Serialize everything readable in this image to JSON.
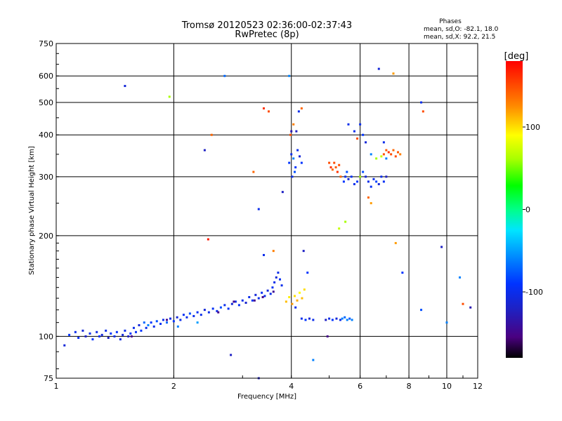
{
  "chart_data": {
    "type": "scatter",
    "title": "Tromsø 20120523 02:36:00-02:37:43",
    "subtitle": "RwPretec (8p)",
    "xlabel": "Frequency [MHz]",
    "ylabel": "Stationary phase Virtual Height [km]",
    "x_scale": "log",
    "y_scale": "log",
    "xlim": [
      1,
      12
    ],
    "ylim": [
      75,
      750
    ],
    "grid": true,
    "x_ticks": [
      1,
      2,
      4,
      6,
      8,
      10,
      12
    ],
    "x_tick_labels": [
      "1",
      "2",
      "4",
      "6",
      "8",
      "10",
      "12"
    ],
    "x_gridlines": [
      2,
      4,
      6,
      8,
      10
    ],
    "y_ticks": [
      75,
      100,
      200,
      300,
      400,
      500,
      600,
      750
    ],
    "y_tick_labels": [
      "75",
      "100",
      "200",
      "300",
      "400",
      "500",
      "600",
      "750"
    ],
    "y_gridlines": [
      100,
      200,
      300,
      400,
      500,
      600
    ],
    "stats": {
      "heading": "Phases",
      "line_o": "mean, sd,O: -82.1, 18.0",
      "line_x": "mean, sd,X:  92.2, 21.5"
    },
    "colorbar": {
      "label": "[deg]",
      "min": -180,
      "max": 180,
      "ticks": [
        100,
        0,
        -100
      ],
      "tick_labels": [
        "100",
        "0",
        "-100"
      ]
    },
    "points": [
      [
        1.05,
        94,
        -110
      ],
      [
        1.08,
        101,
        -90
      ],
      [
        1.12,
        103,
        -100
      ],
      [
        1.14,
        99,
        -95
      ],
      [
        1.17,
        104,
        -110
      ],
      [
        1.19,
        100,
        -120
      ],
      [
        1.22,
        102,
        -100
      ],
      [
        1.24,
        98,
        -90
      ],
      [
        1.27,
        103,
        -105
      ],
      [
        1.29,
        100,
        -95
      ],
      [
        1.31,
        101,
        -110
      ],
      [
        1.34,
        104,
        -100
      ],
      [
        1.36,
        99,
        -120
      ],
      [
        1.38,
        102,
        -90
      ],
      [
        1.41,
        100,
        -100
      ],
      [
        1.43,
        103,
        -95
      ],
      [
        1.46,
        98,
        -105
      ],
      [
        1.48,
        101,
        -110
      ],
      [
        1.5,
        104,
        -100
      ],
      [
        1.53,
        100,
        -120
      ],
      [
        1.55,
        102,
        -90
      ],
      [
        1.58,
        106,
        -100
      ],
      [
        1.6,
        103,
        -95
      ],
      [
        1.63,
        108,
        -110
      ],
      [
        1.65,
        104,
        -90
      ],
      [
        1.68,
        110,
        -70
      ],
      [
        1.7,
        106,
        -100
      ],
      [
        1.72,
        108,
        -60
      ],
      [
        1.75,
        110,
        -90
      ],
      [
        1.78,
        107,
        -100
      ],
      [
        1.81,
        111,
        -80
      ],
      [
        1.85,
        109,
        -95
      ],
      [
        1.88,
        112,
        -100
      ],
      [
        1.92,
        110,
        -70
      ],
      [
        1.96,
        113,
        -100
      ],
      [
        2.0,
        111,
        -90
      ],
      [
        2.04,
        114,
        -110
      ],
      [
        2.08,
        112,
        -100
      ],
      [
        2.12,
        116,
        -95
      ],
      [
        2.16,
        114,
        -100
      ],
      [
        2.2,
        117,
        -80
      ],
      [
        2.25,
        115,
        -100
      ],
      [
        2.3,
        118,
        -95
      ],
      [
        2.35,
        116,
        -100
      ],
      [
        2.4,
        120,
        -110
      ],
      [
        2.46,
        118,
        -100
      ],
      [
        2.52,
        121,
        -95
      ],
      [
        2.58,
        119,
        -100
      ],
      [
        2.64,
        122,
        -80
      ],
      [
        2.7,
        124,
        -100
      ],
      [
        2.76,
        121,
        -95
      ],
      [
        2.82,
        125,
        -110
      ],
      [
        2.88,
        127,
        -100
      ],
      [
        2.94,
        124,
        -95
      ],
      [
        3.0,
        128,
        -100
      ],
      [
        3.06,
        126,
        -115
      ],
      [
        3.12,
        131,
        -100
      ],
      [
        3.18,
        128,
        -95
      ],
      [
        3.24,
        133,
        -110
      ],
      [
        3.3,
        130,
        -100
      ],
      [
        3.36,
        135,
        -95
      ],
      [
        3.42,
        132,
        -100
      ],
      [
        3.48,
        137,
        -110
      ],
      [
        3.54,
        134,
        -100
      ],
      [
        3.58,
        140,
        -95
      ],
      [
        3.62,
        145,
        -100
      ],
      [
        3.66,
        150,
        -110
      ],
      [
        3.7,
        155,
        -100
      ],
      [
        3.74,
        148,
        -95
      ],
      [
        3.78,
        142,
        -100
      ],
      [
        2.85,
        127,
        -150
      ],
      [
        3.22,
        128,
        -150
      ],
      [
        3.38,
        131,
        -150
      ],
      [
        3.6,
        136,
        -145
      ],
      [
        1.56,
        100,
        -150
      ],
      [
        1.92,
        112,
        -150
      ],
      [
        2.6,
        118,
        -150
      ],
      [
        3.88,
        127,
        110
      ],
      [
        3.95,
        131,
        95
      ],
      [
        4.02,
        125,
        120
      ],
      [
        4.08,
        132,
        100
      ],
      [
        4.14,
        128,
        115
      ],
      [
        4.2,
        135,
        90
      ],
      [
        4.26,
        130,
        110
      ],
      [
        4.32,
        138,
        100
      ],
      [
        4.1,
        122,
        -100
      ],
      [
        4.25,
        113,
        -100
      ],
      [
        4.35,
        112,
        -90
      ],
      [
        4.45,
        113,
        -110
      ],
      [
        4.55,
        112,
        -100
      ],
      [
        4.9,
        112,
        -120
      ],
      [
        5.0,
        113,
        -100
      ],
      [
        5.1,
        112,
        -90
      ],
      [
        5.22,
        113,
        -110
      ],
      [
        5.34,
        112,
        -100
      ],
      [
        5.4,
        113,
        -60
      ],
      [
        5.48,
        114,
        -70
      ],
      [
        5.56,
        112,
        -60
      ],
      [
        5.64,
        113,
        -75
      ],
      [
        5.72,
        112,
        -60
      ],
      [
        3.95,
        330,
        -90
      ],
      [
        4.0,
        350,
        -100
      ],
      [
        4.05,
        340,
        -60
      ],
      [
        4.1,
        320,
        -90
      ],
      [
        4.15,
        360,
        -100
      ],
      [
        4.2,
        345,
        -110
      ],
      [
        4.25,
        330,
        -90
      ],
      [
        4.02,
        300,
        -100
      ],
      [
        4.08,
        310,
        -80
      ],
      [
        3.98,
        400,
        150
      ],
      [
        4.05,
        430,
        130
      ],
      [
        4.12,
        410,
        -120
      ],
      [
        4.18,
        470,
        -100
      ],
      [
        4.25,
        480,
        140
      ],
      [
        5.0,
        330,
        150
      ],
      [
        5.05,
        320,
        160
      ],
      [
        5.1,
        315,
        140
      ],
      [
        5.15,
        330,
        150
      ],
      [
        5.2,
        320,
        145
      ],
      [
        5.25,
        310,
        160
      ],
      [
        5.3,
        325,
        150
      ],
      [
        5.35,
        300,
        140
      ],
      [
        5.45,
        290,
        -90
      ],
      [
        5.5,
        300,
        -100
      ],
      [
        5.55,
        310,
        -80
      ],
      [
        5.6,
        295,
        -110
      ],
      [
        5.7,
        300,
        -95
      ],
      [
        5.8,
        285,
        -100
      ],
      [
        5.9,
        290,
        -90
      ],
      [
        6.0,
        300,
        -100
      ],
      [
        6.1,
        310,
        -80
      ],
      [
        6.2,
        300,
        -110
      ],
      [
        6.3,
        290,
        -100
      ],
      [
        6.4,
        280,
        -95
      ],
      [
        6.5,
        295,
        -100
      ],
      [
        6.6,
        290,
        -85
      ],
      [
        6.7,
        285,
        -110
      ],
      [
        6.8,
        300,
        -100
      ],
      [
        6.9,
        290,
        -95
      ],
      [
        7.0,
        300,
        -120
      ],
      [
        6.9,
        350,
        150
      ],
      [
        7.0,
        360,
        145
      ],
      [
        7.1,
        355,
        160
      ],
      [
        7.2,
        350,
        150
      ],
      [
        7.3,
        360,
        140
      ],
      [
        7.4,
        345,
        150
      ],
      [
        7.5,
        355,
        145
      ],
      [
        7.6,
        350,
        130
      ],
      [
        6.6,
        340,
        60
      ],
      [
        6.8,
        345,
        70
      ],
      [
        7.0,
        340,
        -60
      ],
      [
        6.0,
        430,
        -100
      ],
      [
        6.1,
        400,
        -90
      ],
      [
        6.2,
        380,
        -110
      ],
      [
        5.9,
        390,
        150
      ],
      [
        5.8,
        410,
        -100
      ],
      [
        5.6,
        430,
        -100
      ],
      [
        6.0,
        300,
        60
      ],
      [
        6.3,
        260,
        140
      ],
      [
        6.4,
        250,
        120
      ],
      [
        5.5,
        220,
        60
      ],
      [
        5.3,
        210,
        70
      ],
      [
        6.4,
        350,
        -60
      ],
      [
        6.9,
        380,
        -100
      ],
      [
        6.7,
        630,
        -110
      ],
      [
        7.3,
        610,
        120
      ],
      [
        1.5,
        560,
        -110
      ],
      [
        1.95,
        520,
        60
      ],
      [
        2.4,
        360,
        -120
      ],
      [
        2.5,
        400,
        140
      ],
      [
        2.7,
        600,
        -70
      ],
      [
        3.2,
        310,
        140
      ],
      [
        3.4,
        480,
        160
      ],
      [
        3.5,
        470,
        150
      ],
      [
        3.8,
        270,
        -120
      ],
      [
        3.95,
        600,
        -60
      ],
      [
        4.0,
        410,
        -130
      ],
      [
        4.3,
        180,
        -120
      ],
      [
        4.4,
        155,
        -90
      ],
      [
        3.3,
        240,
        -100
      ],
      [
        2.45,
        195,
        170
      ],
      [
        4.55,
        85,
        -60
      ],
      [
        3.6,
        180,
        130
      ],
      [
        3.4,
        175,
        -100
      ],
      [
        4.95,
        100,
        -150
      ],
      [
        7.4,
        190,
        120
      ],
      [
        7.7,
        155,
        -90
      ],
      [
        8.6,
        500,
        -100
      ],
      [
        8.7,
        470,
        150
      ],
      [
        8.6,
        120,
        -80
      ],
      [
        9.7,
        185,
        -120
      ],
      [
        10.0,
        110,
        -60
      ],
      [
        10.8,
        150,
        -60
      ],
      [
        11.0,
        125,
        150
      ],
      [
        11.5,
        122,
        -130
      ],
      [
        2.8,
        88,
        -120
      ],
      [
        3.3,
        75,
        -120
      ],
      [
        2.3,
        110,
        -50
      ],
      [
        2.05,
        107,
        -60
      ]
    ]
  }
}
